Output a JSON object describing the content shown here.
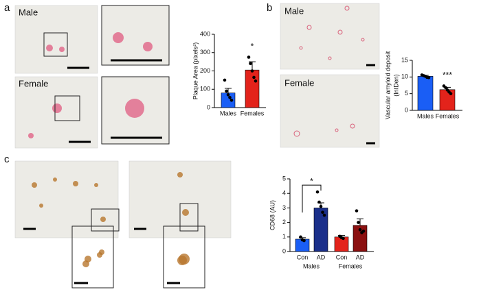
{
  "figure": {
    "panel_labels": [
      "a",
      "b",
      "c"
    ],
    "image_labels": [
      "Male",
      "Female",
      "Male",
      "Female"
    ]
  },
  "chart_data": [
    {
      "type": "bar",
      "ylabel": "Plaque Area (pixels²)",
      "categories": [
        "Males",
        "Females"
      ],
      "values": [
        80,
        205
      ],
      "errors": [
        25,
        45
      ],
      "colors": [
        "#1a5ef5",
        "#e3231b"
      ],
      "points": [
        [
          150,
          90,
          70,
          55,
          40
        ],
        [
          275,
          240,
          200,
          165,
          145
        ]
      ],
      "ylim": [
        0,
        400
      ],
      "yticks": [
        0,
        100,
        200,
        300,
        400
      ],
      "annotations": [
        {
          "text": "*",
          "from": 1,
          "to": 1
        }
      ]
    },
    {
      "type": "bar",
      "ylabel": [
        "Vascular amyloid deposit",
        "(IntDen)"
      ],
      "categories": [
        "Males",
        "Females"
      ],
      "values": [
        10.2,
        6.2
      ],
      "errors": [
        0.3,
        0.7
      ],
      "colors": [
        "#1a5ef5",
        "#e3231b"
      ],
      "points": [
        [
          10.6,
          10.4,
          10.2,
          9.9,
          9.8
        ],
        [
          7.3,
          6.8,
          6.1,
          5.5,
          5.0
        ]
      ],
      "ylim": [
        0,
        15
      ],
      "yticks": [
        0,
        5,
        10,
        15
      ],
      "annotations": [
        {
          "text": "***",
          "from": 1,
          "to": 1
        }
      ]
    },
    {
      "type": "bar",
      "ylabel": "CD68 (AU)",
      "categories": [
        "Con",
        "AD",
        "Con",
        "AD"
      ],
      "groups": [
        "Males",
        "Females"
      ],
      "values": [
        0.85,
        3.0,
        1.0,
        1.8
      ],
      "errors": [
        0.1,
        0.35,
        0.1,
        0.45
      ],
      "colors": [
        "#1a5ef5",
        "#1a2f8a",
        "#e3231b",
        "#8b1010"
      ],
      "points": [
        [
          1.0,
          0.8,
          0.75
        ],
        [
          4.1,
          3.4,
          3.1,
          2.7,
          2.5
        ],
        [
          1.05,
          0.95,
          0.9
        ],
        [
          2.8,
          2.0,
          1.5,
          1.3,
          1.4
        ]
      ],
      "ylim": [
        0,
        5
      ],
      "yticks": [
        0,
        1,
        2,
        3,
        4,
        5
      ],
      "annotations": [
        {
          "text": "*",
          "from": 0,
          "to": 1
        }
      ]
    }
  ]
}
